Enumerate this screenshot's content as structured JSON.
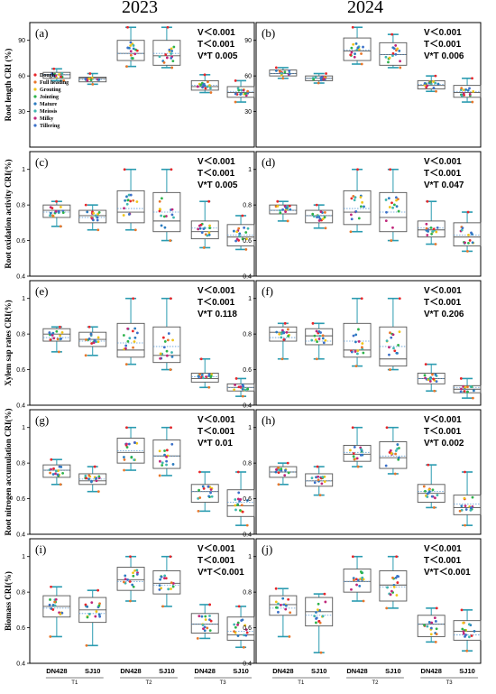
{
  "years": [
    "2023",
    "2024"
  ],
  "legend": [
    {
      "label": "Dough",
      "color": "#e8262a"
    },
    {
      "label": "Full heading",
      "color": "#e8762a"
    },
    {
      "label": "Grouting",
      "color": "#f0c419"
    },
    {
      "label": "Jointing",
      "color": "#2db34a"
    },
    {
      "label": "Mature",
      "color": "#2b7bbf"
    },
    {
      "label": "Meiosis",
      "color": "#3fb6b0"
    },
    {
      "label": "Milky",
      "color": "#c0267a"
    },
    {
      "label": "Tillering",
      "color": "#3b70c9"
    }
  ],
  "colors": {
    "box": "#555555",
    "whisker": "#2a9bb0",
    "mean": "#5b9bd5"
  },
  "x_categories": [
    "DN428",
    "SJ10",
    "DN428",
    "SJ10",
    "DN428",
    "SJ10"
  ],
  "x_groups": [
    "T1",
    "T2",
    "T3"
  ],
  "chart_data": [
    {
      "type": "box",
      "panel": "(a)",
      "year": "2023",
      "ylabel": "Root length CRI (%)",
      "ylim": [
        0,
        105
      ],
      "yticks": [
        30,
        60,
        90
      ],
      "stats": [
        "V＜0.001",
        "T＜0.001",
        "V*T 0.005"
      ],
      "show_legend": true,
      "boxes": [
        {
          "min": 56,
          "q1": 58,
          "median": 61,
          "q3": 63,
          "max": 66,
          "mean": 61
        },
        {
          "min": 53,
          "q1": 55,
          "median": 58,
          "q3": 59,
          "max": 62,
          "mean": 57
        },
        {
          "min": 68,
          "q1": 73,
          "median": 79,
          "q3": 90,
          "max": 101,
          "mean": 79
        },
        {
          "min": 67,
          "q1": 69,
          "median": 77,
          "q3": 90,
          "max": 101,
          "mean": 79
        },
        {
          "min": 46,
          "q1": 48,
          "median": 51,
          "q3": 56,
          "max": 61,
          "mean": 52
        },
        {
          "min": 38,
          "q1": 42,
          "median": 46,
          "q3": 51,
          "max": 56,
          "mean": 47
        }
      ]
    },
    {
      "type": "box",
      "panel": "(b)",
      "year": "2024",
      "ylabel": "",
      "ylim": [
        0,
        105
      ],
      "yticks": [
        30,
        60,
        90
      ],
      "stats": [
        "V＜0.001",
        "T＜0.001",
        "V*T 0.006"
      ],
      "show_legend": false,
      "boxes": [
        {
          "min": 58,
          "q1": 60,
          "median": 62,
          "q3": 65,
          "max": 67,
          "mean": 62
        },
        {
          "min": 54,
          "q1": 56,
          "median": 58,
          "q3": 60,
          "max": 62,
          "mean": 58
        },
        {
          "min": 70,
          "q1": 73,
          "median": 81,
          "q3": 92,
          "max": 101,
          "mean": 82
        },
        {
          "min": 67,
          "q1": 69,
          "median": 78,
          "q3": 88,
          "max": 95,
          "mean": 78
        },
        {
          "min": 47,
          "q1": 49,
          "median": 52,
          "q3": 56,
          "max": 60,
          "mean": 53
        },
        {
          "min": 38,
          "q1": 42,
          "median": 46,
          "q3": 52,
          "max": 58,
          "mean": 47
        }
      ]
    },
    {
      "type": "box",
      "panel": "(c)",
      "year": "2023",
      "ylabel": "Root oxidation activity CRI(%)",
      "ylim": [
        0.4,
        1.1
      ],
      "yticks": [
        0.4,
        0.6,
        0.8,
        1.0
      ],
      "stats": [
        "V＜0.001",
        "T＜0.001",
        "V*T 0.005"
      ],
      "show_legend": false,
      "boxes": [
        {
          "min": 0.68,
          "q1": 0.73,
          "median": 0.77,
          "q3": 0.8,
          "max": 0.82,
          "mean": 0.76
        },
        {
          "min": 0.66,
          "q1": 0.7,
          "median": 0.74,
          "q3": 0.77,
          "max": 0.8,
          "mean": 0.73
        },
        {
          "min": 0.66,
          "q1": 0.7,
          "median": 0.76,
          "q3": 0.88,
          "max": 1.0,
          "mean": 0.78
        },
        {
          "min": 0.6,
          "q1": 0.65,
          "median": 0.71,
          "q3": 0.87,
          "max": 1.0,
          "mean": 0.76
        },
        {
          "min": 0.56,
          "q1": 0.61,
          "median": 0.65,
          "q3": 0.71,
          "max": 0.82,
          "mean": 0.67
        },
        {
          "min": 0.55,
          "q1": 0.57,
          "median": 0.62,
          "q3": 0.69,
          "max": 0.74,
          "mean": 0.63
        }
      ]
    },
    {
      "type": "box",
      "panel": "(d)",
      "year": "2024",
      "ylabel": "",
      "ylim": [
        0.4,
        1.1
      ],
      "yticks": [
        0.4,
        0.6,
        0.8,
        1.0
      ],
      "stats": [
        "V＜0.001",
        "T＜0.001",
        "V*T 0.047"
      ],
      "show_legend": false,
      "boxes": [
        {
          "min": 0.71,
          "q1": 0.75,
          "median": 0.77,
          "q3": 0.8,
          "max": 0.82,
          "mean": 0.77
        },
        {
          "min": 0.67,
          "q1": 0.7,
          "median": 0.74,
          "q3": 0.77,
          "max": 0.8,
          "mean": 0.74
        },
        {
          "min": 0.65,
          "q1": 0.69,
          "median": 0.76,
          "q3": 0.88,
          "max": 1.0,
          "mean": 0.78
        },
        {
          "min": 0.6,
          "q1": 0.65,
          "median": 0.73,
          "q3": 0.87,
          "max": 1.0,
          "mean": 0.76
        },
        {
          "min": 0.58,
          "q1": 0.62,
          "median": 0.66,
          "q3": 0.71,
          "max": 0.82,
          "mean": 0.67
        },
        {
          "min": 0.54,
          "q1": 0.57,
          "median": 0.62,
          "q3": 0.7,
          "max": 0.76,
          "mean": 0.63
        }
      ]
    },
    {
      "type": "box",
      "panel": "(e)",
      "year": "2023",
      "ylabel": "Xylem sap rates CRI(%)",
      "ylim": [
        0.4,
        1.1
      ],
      "yticks": [
        0.4,
        0.6,
        0.8,
        1.0
      ],
      "stats": [
        "V＜0.001",
        "T＜0.001",
        "V*T 0.118"
      ],
      "show_legend": false,
      "boxes": [
        {
          "min": 0.7,
          "q1": 0.76,
          "median": 0.8,
          "q3": 0.83,
          "max": 0.84,
          "mean": 0.78
        },
        {
          "min": 0.68,
          "q1": 0.73,
          "median": 0.77,
          "q3": 0.81,
          "max": 0.84,
          "mean": 0.76
        },
        {
          "min": 0.63,
          "q1": 0.67,
          "median": 0.71,
          "q3": 0.86,
          "max": 1.0,
          "mean": 0.75
        },
        {
          "min": 0.6,
          "q1": 0.64,
          "median": 0.68,
          "q3": 0.84,
          "max": 1.0,
          "mean": 0.73
        },
        {
          "min": 0.5,
          "q1": 0.53,
          "median": 0.55,
          "q3": 0.58,
          "max": 0.66,
          "mean": 0.56
        },
        {
          "min": 0.45,
          "q1": 0.48,
          "median": 0.5,
          "q3": 0.52,
          "max": 0.55,
          "mean": 0.5
        }
      ]
    },
    {
      "type": "box",
      "panel": "(f)",
      "year": "2024",
      "ylabel": "",
      "ylim": [
        0.4,
        1.1
      ],
      "yticks": [
        0.4,
        0.6,
        0.8,
        1.0
      ],
      "stats": [
        "V＜0.001",
        "T＜0.001",
        "V*T 0.206"
      ],
      "show_legend": false,
      "boxes": [
        {
          "min": 0.66,
          "q1": 0.76,
          "median": 0.81,
          "q3": 0.84,
          "max": 0.86,
          "mean": 0.78
        },
        {
          "min": 0.66,
          "q1": 0.74,
          "median": 0.79,
          "q3": 0.83,
          "max": 0.86,
          "mean": 0.76
        },
        {
          "min": 0.62,
          "q1": 0.67,
          "median": 0.71,
          "q3": 0.86,
          "max": 1.0,
          "mean": 0.76
        },
        {
          "min": 0.6,
          "q1": 0.62,
          "median": 0.66,
          "q3": 0.84,
          "max": 1.0,
          "mean": 0.73
        },
        {
          "min": 0.48,
          "q1": 0.52,
          "median": 0.55,
          "q3": 0.58,
          "max": 0.63,
          "mean": 0.55
        },
        {
          "min": 0.44,
          "q1": 0.47,
          "median": 0.49,
          "q3": 0.51,
          "max": 0.55,
          "mean": 0.5
        }
      ]
    },
    {
      "type": "box",
      "panel": "(g)",
      "year": "2023",
      "ylabel": "Root nitrogen accumulation CRI(%)",
      "ylim": [
        0.4,
        1.1
      ],
      "yticks": [
        0.4,
        0.6,
        0.8,
        1.0
      ],
      "stats": [
        "V＜0.001",
        "T＜0.001",
        "V*T 0.01"
      ],
      "show_legend": false,
      "boxes": [
        {
          "min": 0.68,
          "q1": 0.72,
          "median": 0.76,
          "q3": 0.79,
          "max": 0.82,
          "mean": 0.76
        },
        {
          "min": 0.64,
          "q1": 0.68,
          "median": 0.7,
          "q3": 0.74,
          "max": 0.78,
          "mean": 0.71
        },
        {
          "min": 0.76,
          "q1": 0.8,
          "median": 0.86,
          "q3": 0.94,
          "max": 1.0,
          "mean": 0.87
        },
        {
          "min": 0.73,
          "q1": 0.77,
          "median": 0.84,
          "q3": 0.93,
          "max": 1.0,
          "mean": 0.84
        },
        {
          "min": 0.53,
          "q1": 0.58,
          "median": 0.64,
          "q3": 0.68,
          "max": 0.75,
          "mean": 0.64
        },
        {
          "min": 0.45,
          "q1": 0.5,
          "median": 0.56,
          "q3": 0.65,
          "max": 0.75,
          "mean": 0.58
        }
      ]
    },
    {
      "type": "box",
      "panel": "(h)",
      "year": "2024",
      "ylabel": "",
      "ylim": [
        0.4,
        1.1
      ],
      "yticks": [
        0.4,
        0.6,
        0.8,
        1.0
      ],
      "stats": [
        "V＜0.001",
        "T＜0.001",
        "V*T 0.002"
      ],
      "show_legend": false,
      "boxes": [
        {
          "min": 0.68,
          "q1": 0.72,
          "median": 0.75,
          "q3": 0.78,
          "max": 0.8,
          "mean": 0.75
        },
        {
          "min": 0.62,
          "q1": 0.67,
          "median": 0.7,
          "q3": 0.74,
          "max": 0.78,
          "mean": 0.7
        },
        {
          "min": 0.78,
          "q1": 0.81,
          "median": 0.85,
          "q3": 0.9,
          "max": 1.0,
          "mean": 0.86
        },
        {
          "min": 0.74,
          "q1": 0.77,
          "median": 0.83,
          "q3": 0.92,
          "max": 1.0,
          "mean": 0.84
        },
        {
          "min": 0.55,
          "q1": 0.58,
          "median": 0.63,
          "q3": 0.68,
          "max": 0.79,
          "mean": 0.64
        },
        {
          "min": 0.45,
          "q1": 0.51,
          "median": 0.55,
          "q3": 0.62,
          "max": 0.75,
          "mean": 0.57
        }
      ]
    },
    {
      "type": "box",
      "panel": "(i)",
      "year": "2023",
      "ylabel": "Biomass CRI(%)",
      "ylim": [
        0.4,
        1.1
      ],
      "yticks": [
        0.4,
        0.6,
        0.8,
        1.0
      ],
      "stats": [
        "V＜0.001",
        "T＜0.001",
        "V*T＜0.001"
      ],
      "show_legend": false,
      "boxes": [
        {
          "min": 0.55,
          "q1": 0.66,
          "median": 0.72,
          "q3": 0.78,
          "max": 0.83,
          "mean": 0.71
        },
        {
          "min": 0.5,
          "q1": 0.63,
          "median": 0.7,
          "q3": 0.77,
          "max": 0.81,
          "mean": 0.68
        },
        {
          "min": 0.75,
          "q1": 0.81,
          "median": 0.87,
          "q3": 0.94,
          "max": 1.0,
          "mean": 0.86
        },
        {
          "min": 0.72,
          "q1": 0.79,
          "median": 0.85,
          "q3": 0.92,
          "max": 1.0,
          "mean": 0.84
        },
        {
          "min": 0.54,
          "q1": 0.57,
          "median": 0.62,
          "q3": 0.68,
          "max": 0.73,
          "mean": 0.62
        },
        {
          "min": 0.49,
          "q1": 0.53,
          "median": 0.56,
          "q3": 0.66,
          "max": 0.72,
          "mean": 0.58
        }
      ]
    },
    {
      "type": "box",
      "panel": "(j)",
      "year": "2024",
      "ylabel": "",
      "ylim": [
        0.4,
        1.1
      ],
      "yticks": [
        0.4,
        0.6,
        0.8,
        1.0
      ],
      "stats": [
        "V＜0.001",
        "T＜0.001",
        "V*T＜0.001"
      ],
      "show_legend": false,
      "boxes": [
        {
          "min": 0.55,
          "q1": 0.67,
          "median": 0.73,
          "q3": 0.78,
          "max": 0.82,
          "mean": 0.71
        },
        {
          "min": 0.46,
          "q1": 0.61,
          "median": 0.69,
          "q3": 0.77,
          "max": 0.79,
          "mean": 0.67
        },
        {
          "min": 0.75,
          "q1": 0.8,
          "median": 0.86,
          "q3": 0.93,
          "max": 1.0,
          "mean": 0.86
        },
        {
          "min": 0.71,
          "q1": 0.75,
          "median": 0.84,
          "q3": 0.92,
          "max": 1.0,
          "mean": 0.83
        },
        {
          "min": 0.52,
          "q1": 0.55,
          "median": 0.62,
          "q3": 0.67,
          "max": 0.71,
          "mean": 0.62
        },
        {
          "min": 0.47,
          "q1": 0.53,
          "median": 0.58,
          "q3": 0.64,
          "max": 0.7,
          "mean": 0.56
        }
      ]
    }
  ]
}
